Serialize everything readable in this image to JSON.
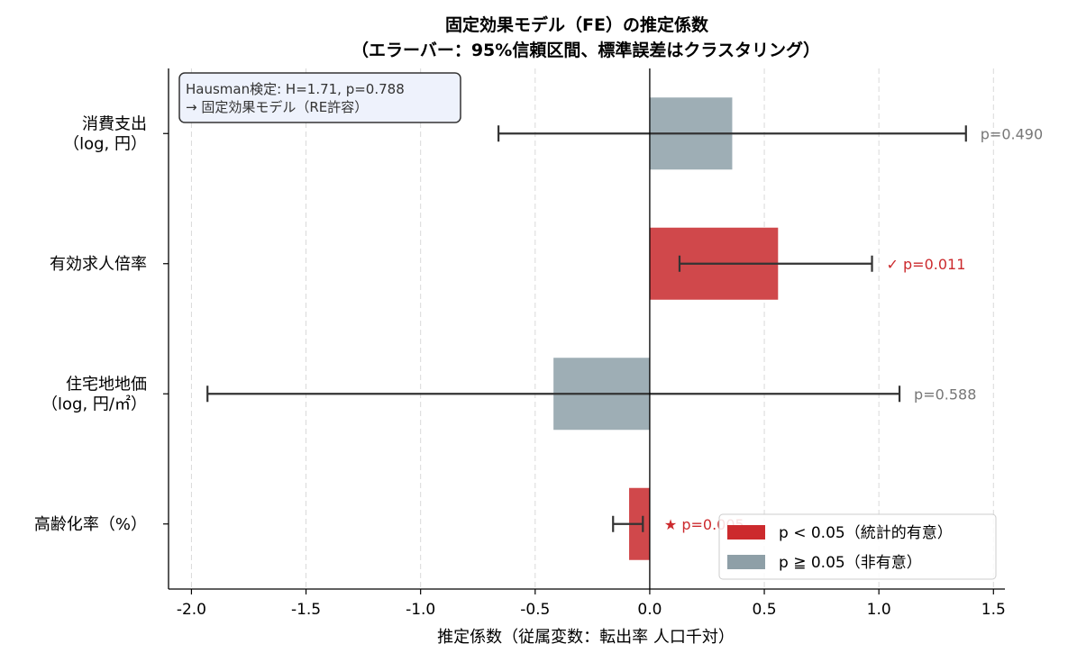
{
  "chart_data": {
    "type": "bar",
    "orientation": "horizontal",
    "title": "固定効果モデル（FE）の推定係数",
    "subtitle": "（エラーバー：95%信頼区間、標準誤差はクラスタリング）",
    "xlabel": "推定係数（従属変数：転出率 人口千対）",
    "ylabel": "",
    "xlim": [
      -2.1,
      1.55
    ],
    "xticks": [
      -2.0,
      -1.5,
      -1.0,
      -0.5,
      0.0,
      0.5,
      1.0,
      1.5
    ],
    "xtick_labels": [
      "-2.0",
      "-1.5",
      "-1.0",
      "-0.5",
      "0.0",
      "0.5",
      "1.0",
      "1.5"
    ],
    "grid": "x-dashed",
    "categories": [
      [
        "消費支出",
        "（log, 円）"
      ],
      [
        "有効求人倍率"
      ],
      [
        "住宅地地価",
        "（log, 円/㎡）"
      ],
      [
        "高齢化率（%）"
      ]
    ],
    "values": [
      0.36,
      0.56,
      -0.42,
      -0.09
    ],
    "ci_low": [
      -0.66,
      0.13,
      -1.93,
      -0.16
    ],
    "ci_high": [
      1.38,
      0.97,
      1.09,
      -0.03
    ],
    "significant": [
      false,
      true,
      false,
      true
    ],
    "pvalue_labels": [
      "p=0.490",
      "✓ p=0.011",
      "p=0.588",
      "★ p=0.005"
    ],
    "colors": {
      "significant": "#d0484b",
      "non_significant": "#9eaeb5",
      "legend_significant": "#cc2a2d",
      "legend_non_significant": "#8e9fa7",
      "errorbar": "#333333",
      "pval_significant": "#cc2a2d",
      "pval_non_significant": "#777777"
    },
    "annotation": {
      "line1": "Hausman検定: H=1.71, p=0.788",
      "line2": "→ 固定効果モデル（RE許容）"
    },
    "legend": {
      "position": "lower-right",
      "entries": [
        "p < 0.05（統計的有意）",
        "p ≧ 0.05（非有意）"
      ]
    }
  }
}
